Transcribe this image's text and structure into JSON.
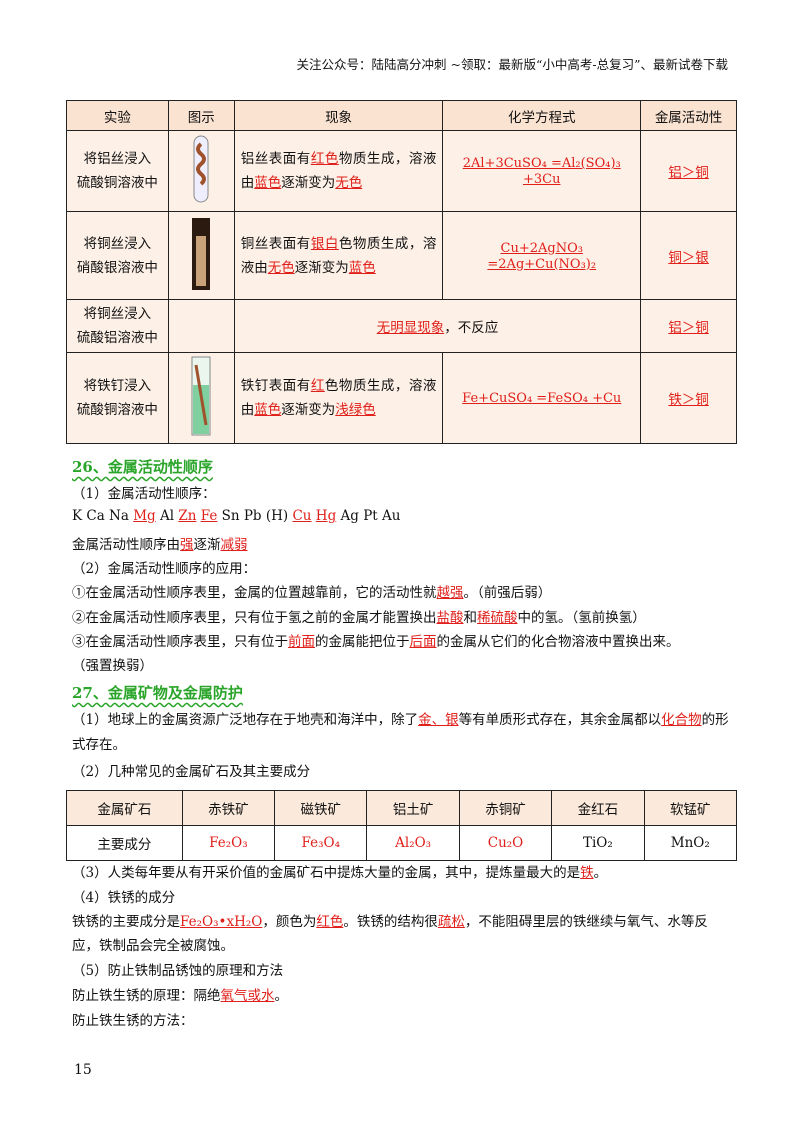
{
  "header": {
    "text": "关注公众号：陆陆高分冲刺 ~领取：最新版“小中高考-总复习”、最新试卷下载"
  },
  "table1": {
    "headers": [
      "实验",
      "图示",
      "现象",
      "化学方程式",
      "金属活动性"
    ],
    "rows": [
      {
        "experiment": "将铝丝浸入\n硫酸铜溶液中",
        "phenomenon": [
          "铝丝表面有",
          {
            "hl": "红色"
          },
          "物质生成，溶液由",
          {
            "hl": "蓝色"
          },
          "逐渐变为",
          {
            "hl": "无色"
          }
        ],
        "equation": "2Al+3CuSO₄ =Al₂(SO₄)₃ +3Cu",
        "activity": "铝＞铜"
      },
      {
        "experiment": "将铜丝浸入\n硝酸银溶液中",
        "phenomenon": [
          "铜丝表面有",
          {
            "hl": "银白"
          },
          "色物质生成，溶液由",
          {
            "hl": "无色"
          },
          "逐渐变为",
          {
            "hl": "蓝色"
          }
        ],
        "equation": "Cu+2AgNO₃ =2Ag+Cu(NO₃)₂",
        "activity": "铜＞银"
      },
      {
        "experiment": "将铜丝浸入\n硫酸铝溶液中",
        "phenomenon": [
          {
            "hl": "无明显现象"
          },
          "，不反应"
        ],
        "activity": "铝＞铜"
      },
      {
        "experiment": "将铁钉浸入\n硫酸铜溶液中",
        "phenomenon": [
          "铁钉表面有",
          {
            "hl": "红"
          },
          "色物质生成，溶液由",
          {
            "hl": "蓝色"
          },
          "逐渐变为",
          {
            "hl": "浅绿色"
          }
        ],
        "equation": "Fe+CuSO₄ =FeSO₄ +Cu",
        "activity": "铁＞铜"
      }
    ]
  },
  "section26": {
    "title": "26、金属活动性顺序",
    "lines": [
      [
        "（1）金属活动性顺序："
      ],
      [
        "K  Ca  Na  ",
        {
          "hl": "Mg"
        },
        "  Al  ",
        {
          "hl": "Zn"
        },
        "  ",
        {
          "hl": "Fe"
        },
        "  Sn  Pb  (H)  ",
        {
          "hl": "Cu"
        },
        "  ",
        {
          "hl": "Hg"
        },
        "  Ag  Pt  Au"
      ],
      [
        "金属活动性顺序由",
        {
          "hl": "强"
        },
        "逐渐",
        {
          "hl": "减弱"
        }
      ],
      [
        "（2）金属活动性顺序的应用："
      ],
      [
        "①在金属活动性顺序表里，金属的位置越靠前，它的活动性就",
        {
          "hl": "越强"
        },
        "。（前强后弱）"
      ],
      [
        "②在金属活动性顺序表里，只有位于氢之前的金属才能置换出",
        {
          "hl": "盐酸"
        },
        "和",
        {
          "hl": "稀硫酸"
        },
        "中的氢。（氢前换氢）"
      ],
      [
        "③在金属活动性顺序表里，只有位于",
        {
          "hl": "前面"
        },
        "的金属能把位于",
        {
          "hl": "后面"
        },
        "的金属从它们的化合物溶液中置换出来。"
      ],
      [
        "（强置换弱）"
      ]
    ]
  },
  "section27": {
    "title": "27、金属矿物及金属防护",
    "intro": [
      "（1）地球上的金属资源广泛地存在于地壳和海洋中，除了",
      {
        "hl": "金、银"
      },
      "等有单质形式存在，其余金属都以",
      {
        "hl": "化合物"
      },
      "的形式存在。"
    ],
    "line2": [
      "（2）几种常见的金属矿石及其主要成分"
    ],
    "ore_table": {
      "headers": [
        "金属矿石",
        "赤铁矿",
        "磁铁矿",
        "铝土矿",
        "赤铜矿",
        "金红石",
        "软锰矿"
      ],
      "row": [
        "主要成分",
        {
          "red": "Fe₂O₃"
        },
        {
          "red": "Fe₃O₄"
        },
        {
          "red": "Al₂O₃"
        },
        {
          "red": "Cu₂O"
        },
        "TiO₂",
        "MnO₂"
      ]
    },
    "rest": [
      [
        "（3）人类每年要从有开采价值的金属矿石中提炼大量的金属，其中，提炼量最大的是",
        {
          "hl": "铁"
        },
        "。"
      ],
      [
        "（4）铁锈的成分"
      ],
      [
        "铁锈的主要成分是",
        {
          "hl": "Fe₂O₃•xH₂O"
        },
        "，颜色为",
        {
          "hl": "红色"
        },
        "。铁锈的结构很",
        {
          "hl": "疏松"
        },
        "，不能阻碍里层的铁继续与氧气、水等反"
      ],
      [
        "应，铁制品会完全被腐蚀。"
      ],
      [
        "（5）防止铁制品锈蚀的原理和方法"
      ],
      [
        "防止铁生锈的原理：隔绝",
        {
          "hl": "氧气或水"
        },
        "。"
      ],
      [
        "防止铁生锈的方法："
      ]
    ]
  },
  "page_number": "15"
}
